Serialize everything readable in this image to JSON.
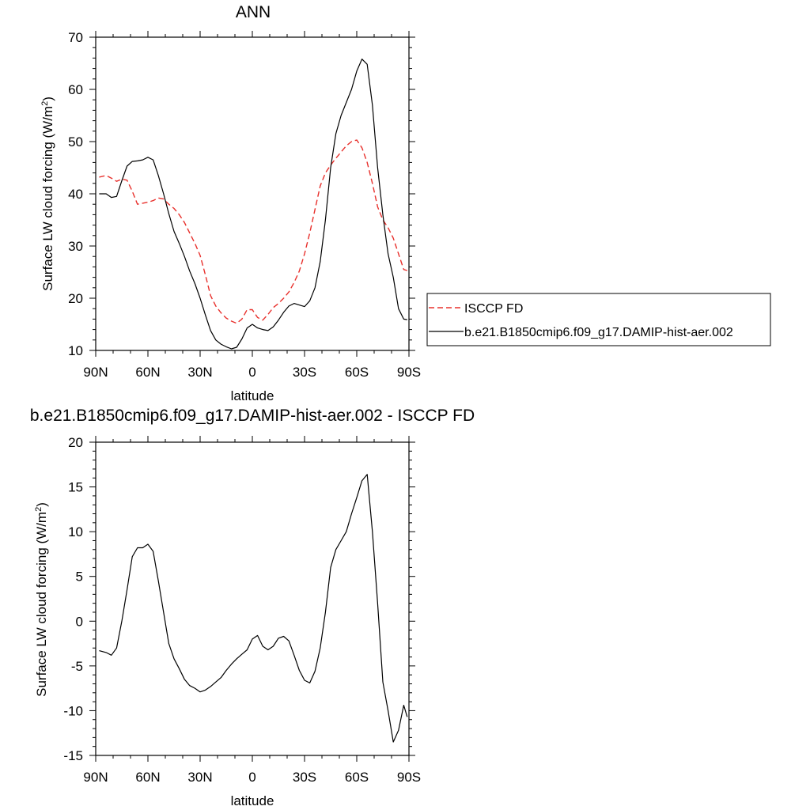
{
  "chart_data": [
    {
      "type": "line",
      "title": "ANN",
      "xlabel": "latitude",
      "ylabel": "Surface LW cloud forcing (W/m",
      "ylabel_sup": "2",
      "ylabel_close": ")",
      "xlim": [
        90,
        -90
      ],
      "ylim": [
        10,
        70
      ],
      "x_ticks": [
        90,
        60,
        30,
        0,
        -30,
        -60,
        -90
      ],
      "x_tick_labels": [
        "90N",
        "60N",
        "30N",
        "0",
        "30S",
        "60S",
        "90S"
      ],
      "y_ticks": [
        10,
        20,
        30,
        40,
        50,
        60,
        70
      ],
      "y_tick_labels": [
        "10",
        "20",
        "30",
        "40",
        "50",
        "60",
        "70"
      ],
      "grid": false,
      "legend_position": "right",
      "series": [
        {
          "name": "ISCCP FD",
          "color": "#e8302c",
          "dash": "dashed",
          "x": [
            88,
            84,
            81,
            78,
            75,
            72,
            69,
            66,
            63,
            60,
            57,
            54,
            51,
            48,
            45,
            42,
            39,
            36,
            33,
            30,
            27,
            24,
            21,
            18,
            15,
            12,
            9,
            6,
            3,
            0,
            -3,
            -6,
            -9,
            -12,
            -15,
            -18,
            -21,
            -24,
            -27,
            -30,
            -33,
            -36,
            -39,
            -42,
            -45,
            -48,
            -51,
            -54,
            -57,
            -60,
            -63,
            -66,
            -69,
            -72,
            -75,
            -78,
            -81,
            -84,
            -87,
            -89
          ],
          "y": [
            43.2,
            43.5,
            43.0,
            42.4,
            42.8,
            42.6,
            40.5,
            38.0,
            38.2,
            38.4,
            38.7,
            39.2,
            39.0,
            38.0,
            37.2,
            36.0,
            34.5,
            32.5,
            30.5,
            28.2,
            24.5,
            20.5,
            18.5,
            17.2,
            16.2,
            15.6,
            15.2,
            16.0,
            17.8,
            17.8,
            16.3,
            15.8,
            16.9,
            18.2,
            19.0,
            20.0,
            21.2,
            23.0,
            25.2,
            28.5,
            32.5,
            37.0,
            41.5,
            44.0,
            45.5,
            46.8,
            48.0,
            49.2,
            50.0,
            50.3,
            48.8,
            46.0,
            42.0,
            37.5,
            35.0,
            33.5,
            31.5,
            28.5,
            25.5,
            25.3
          ]
        },
        {
          "name": "b.e21.B1850cmip6.f09_g17.DAMIP-hist-aer.002",
          "color": "#000000",
          "dash": "solid",
          "x": [
            88,
            84,
            81,
            78,
            75,
            72,
            69,
            66,
            63,
            60,
            57,
            54,
            51,
            48,
            45,
            42,
            39,
            36,
            33,
            30,
            27,
            24,
            21,
            18,
            15,
            12,
            9,
            6,
            3,
            0,
            -3,
            -6,
            -9,
            -12,
            -15,
            -18,
            -21,
            -24,
            -27,
            -30,
            -33,
            -36,
            -39,
            -42,
            -45,
            -48,
            -51,
            -54,
            -57,
            -60,
            -63,
            -66,
            -69,
            -72,
            -75,
            -78,
            -81,
            -84,
            -87,
            -89
          ],
          "y": [
            40.0,
            40.0,
            39.3,
            39.5,
            42.5,
            45.3,
            46.2,
            46.3,
            46.5,
            47.0,
            46.5,
            43.5,
            40.0,
            36.2,
            32.8,
            30.5,
            28.0,
            25.2,
            22.8,
            20.0,
            16.8,
            13.8,
            12.0,
            11.2,
            10.7,
            10.3,
            10.6,
            12.2,
            14.3,
            15.0,
            14.3,
            14.0,
            13.8,
            14.5,
            15.8,
            17.3,
            18.5,
            19.0,
            18.7,
            18.4,
            19.5,
            22.0,
            27.0,
            35.0,
            45.0,
            51.5,
            55.0,
            57.5,
            60.0,
            63.5,
            65.8,
            64.8,
            57.0,
            45.0,
            36.0,
            28.5,
            24.0,
            18.0,
            16.0,
            15.9
          ]
        }
      ]
    },
    {
      "type": "line",
      "title": "b.e21.B1850cmip6.f09_g17.DAMIP-hist-aer.002 - ISCCP FD",
      "xlabel": "latitude",
      "ylabel": "Surface LW cloud forcing (W/m",
      "ylabel_sup": "2",
      "ylabel_close": ")",
      "xlim": [
        90,
        -90
      ],
      "ylim": [
        -15,
        20
      ],
      "x_ticks": [
        90,
        60,
        30,
        0,
        -30,
        -60,
        -90
      ],
      "x_tick_labels": [
        "90N",
        "60N",
        "30N",
        "0",
        "30S",
        "60S",
        "90S"
      ],
      "y_ticks": [
        -15,
        -10,
        -5,
        0,
        5,
        10,
        15,
        20
      ],
      "y_tick_labels": [
        "-15",
        "-10",
        "-5",
        "0",
        "5",
        "10",
        "15",
        "20"
      ],
      "grid": false,
      "series": [
        {
          "name": "",
          "color": "#000000",
          "dash": "solid",
          "x": [
            88,
            84,
            81,
            78,
            75,
            72,
            69,
            66,
            63,
            60,
            57,
            54,
            51,
            48,
            45,
            42,
            39,
            36,
            33,
            30,
            27,
            24,
            21,
            18,
            15,
            12,
            9,
            6,
            3,
            0,
            -3,
            -6,
            -9,
            -12,
            -15,
            -18,
            -21,
            -24,
            -27,
            -30,
            -33,
            -36,
            -39,
            -42,
            -45,
            -48,
            -51,
            -54,
            -57,
            -60,
            -63,
            -66,
            -69,
            -72,
            -75,
            -78,
            -81,
            -84,
            -87,
            -89
          ],
          "y": [
            -3.3,
            -3.5,
            -3.8,
            -3.0,
            0.0,
            3.5,
            7.2,
            8.2,
            8.2,
            8.6,
            7.8,
            4.5,
            1.0,
            -2.5,
            -4.2,
            -5.3,
            -6.5,
            -7.2,
            -7.5,
            -7.9,
            -7.7,
            -7.3,
            -6.8,
            -6.3,
            -5.5,
            -4.8,
            -4.2,
            -3.7,
            -3.2,
            -2.0,
            -1.6,
            -2.8,
            -3.2,
            -2.8,
            -1.9,
            -1.7,
            -2.2,
            -3.8,
            -5.5,
            -6.6,
            -6.9,
            -5.6,
            -3.0,
            1.0,
            6.0,
            8.0,
            9.0,
            10.0,
            12.0,
            13.8,
            15.7,
            16.4,
            10.0,
            2.0,
            -6.8,
            -10.0,
            -13.5,
            -12.2,
            -9.4,
            -10.7
          ]
        }
      ]
    }
  ]
}
